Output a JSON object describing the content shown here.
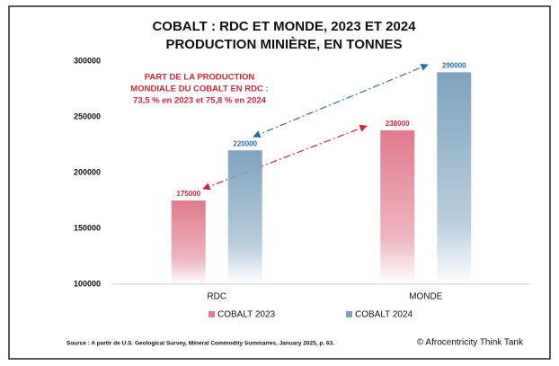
{
  "chart_data": {
    "type": "bar",
    "title": "COBALT : RDC ET MONDE, 2023 ET 2024",
    "subtitle": "PRODUCTION MINIÈRE, EN TONNES",
    "annotation": [
      "PART DE LA PRODUCTION",
      "MONDIALE DU COBALT EN RDC :",
      "73,5 % en 2023 et 75,8 % en 2024"
    ],
    "categories": [
      "RDC",
      "MONDE"
    ],
    "series": [
      {
        "name": "COBALT 2023",
        "color": "#e07a8c",
        "label_color": "#c8283c",
        "values": [
          175000,
          238000
        ]
      },
      {
        "name": "COBALT 2024",
        "color": "#7ea4bf",
        "label_color": "#2e6da4",
        "values": [
          220000,
          290000
        ]
      }
    ],
    "ylim": [
      100000,
      300000
    ],
    "yticks": [
      100000,
      150000,
      200000,
      250000,
      300000
    ],
    "grid": false,
    "source": "Source : A partir de U.S. Geological Survey, Mineral Commodity Summaries, January 2025, p. 63.",
    "credit": "© Afrocentricity Think Tank"
  }
}
